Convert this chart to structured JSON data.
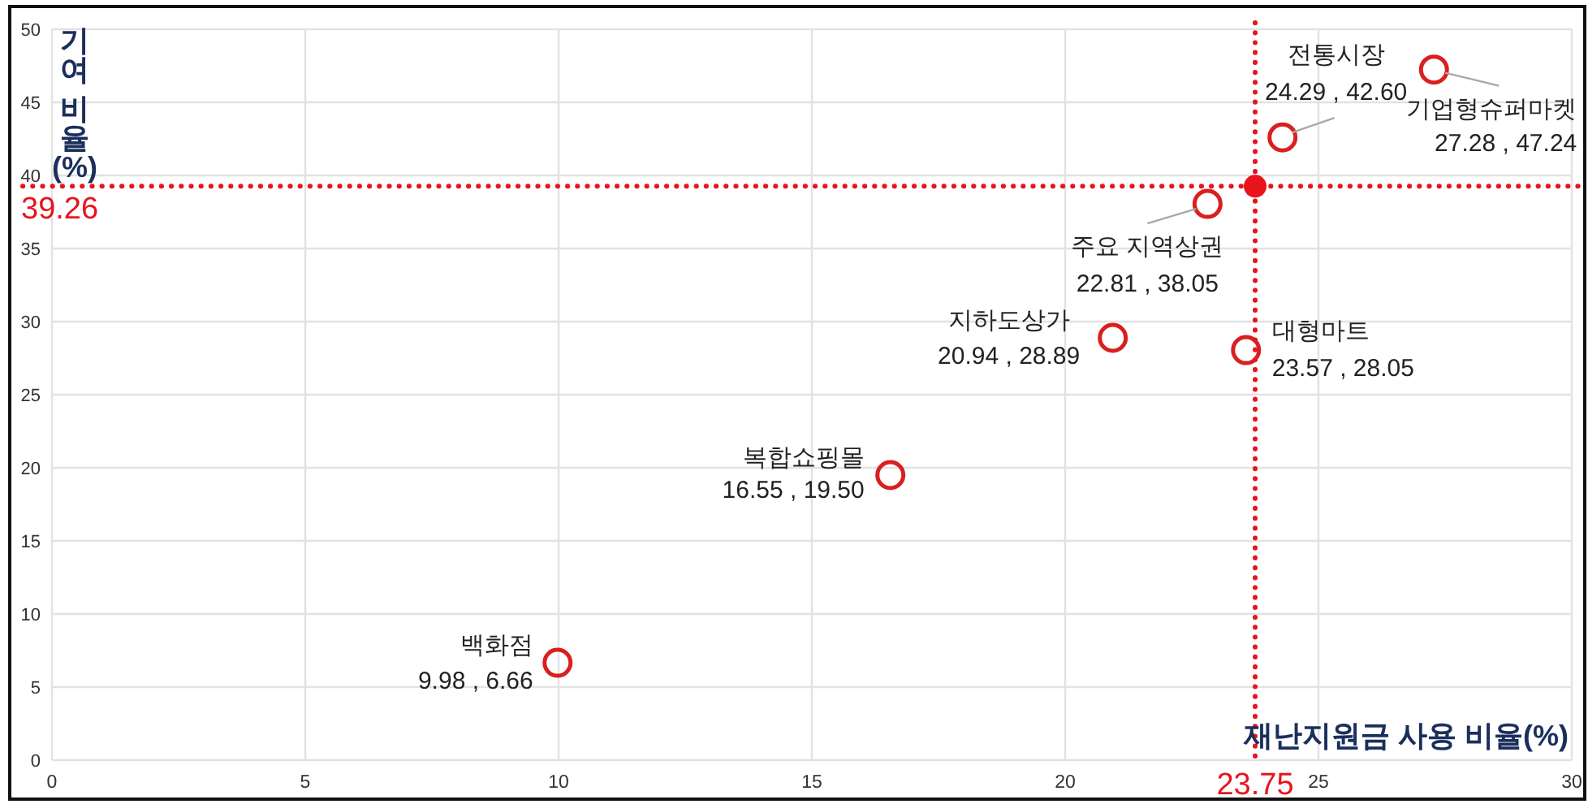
{
  "chart_data": {
    "type": "scatter",
    "xlabel": "재난지원금 사용 비율(%)",
    "ylabel": "기여 비율(%)",
    "series": [
      {
        "color": "#d9201f",
        "x": [
          9.98,
          16.55,
          20.94,
          22.81,
          23.57,
          24.29,
          27.28
        ],
        "values": [
          6.66,
          19.5,
          28.89,
          38.05,
          28.05,
          42.6,
          47.24
        ],
        "value_labels": [
          "9.98 , 6.66",
          "16.55 , 19.50",
          "20.94 , 28.89",
          "22.81 , 38.05",
          "23.57 , 28.05",
          "24.29 , 42.60",
          "27.28 , 47.24"
        ]
      }
    ],
    "annotations": [
      {
        "text": "백화점",
        "x": 9.98,
        "y": 6.66
      },
      {
        "text": "복합쇼핑몰",
        "x": 16.55,
        "y": 19.5
      },
      {
        "text": "지하도상가",
        "x": 20.94,
        "y": 28.89
      },
      {
        "text": "주요 지역상권",
        "x": 22.81,
        "y": 38.05
      },
      {
        "text": "대형마트",
        "x": 23.57,
        "y": 28.05
      },
      {
        "text": "전통시장",
        "x": 24.29,
        "y": 42.6
      },
      {
        "text": "기업형슈퍼마켓",
        "x": 27.28,
        "y": 47.24
      }
    ],
    "ref_lines": [
      {
        "axis": "x",
        "value": 23.75,
        "label": "23.75",
        "color": "#e8141c",
        "line_style": "dotted"
      },
      {
        "axis": "y",
        "value": 39.26,
        "label": "39.26",
        "color": "#e8141c",
        "line_style": "dotted"
      }
    ],
    "xlim": [
      0,
      30
    ],
    "ylim": [
      0,
      50
    ],
    "xticks": [
      0,
      5,
      10,
      15,
      20,
      25,
      30
    ],
    "yticks": [
      0,
      5,
      10,
      15,
      20,
      25,
      30,
      35,
      40,
      45,
      50
    ],
    "grid": true,
    "marker": "circle"
  }
}
